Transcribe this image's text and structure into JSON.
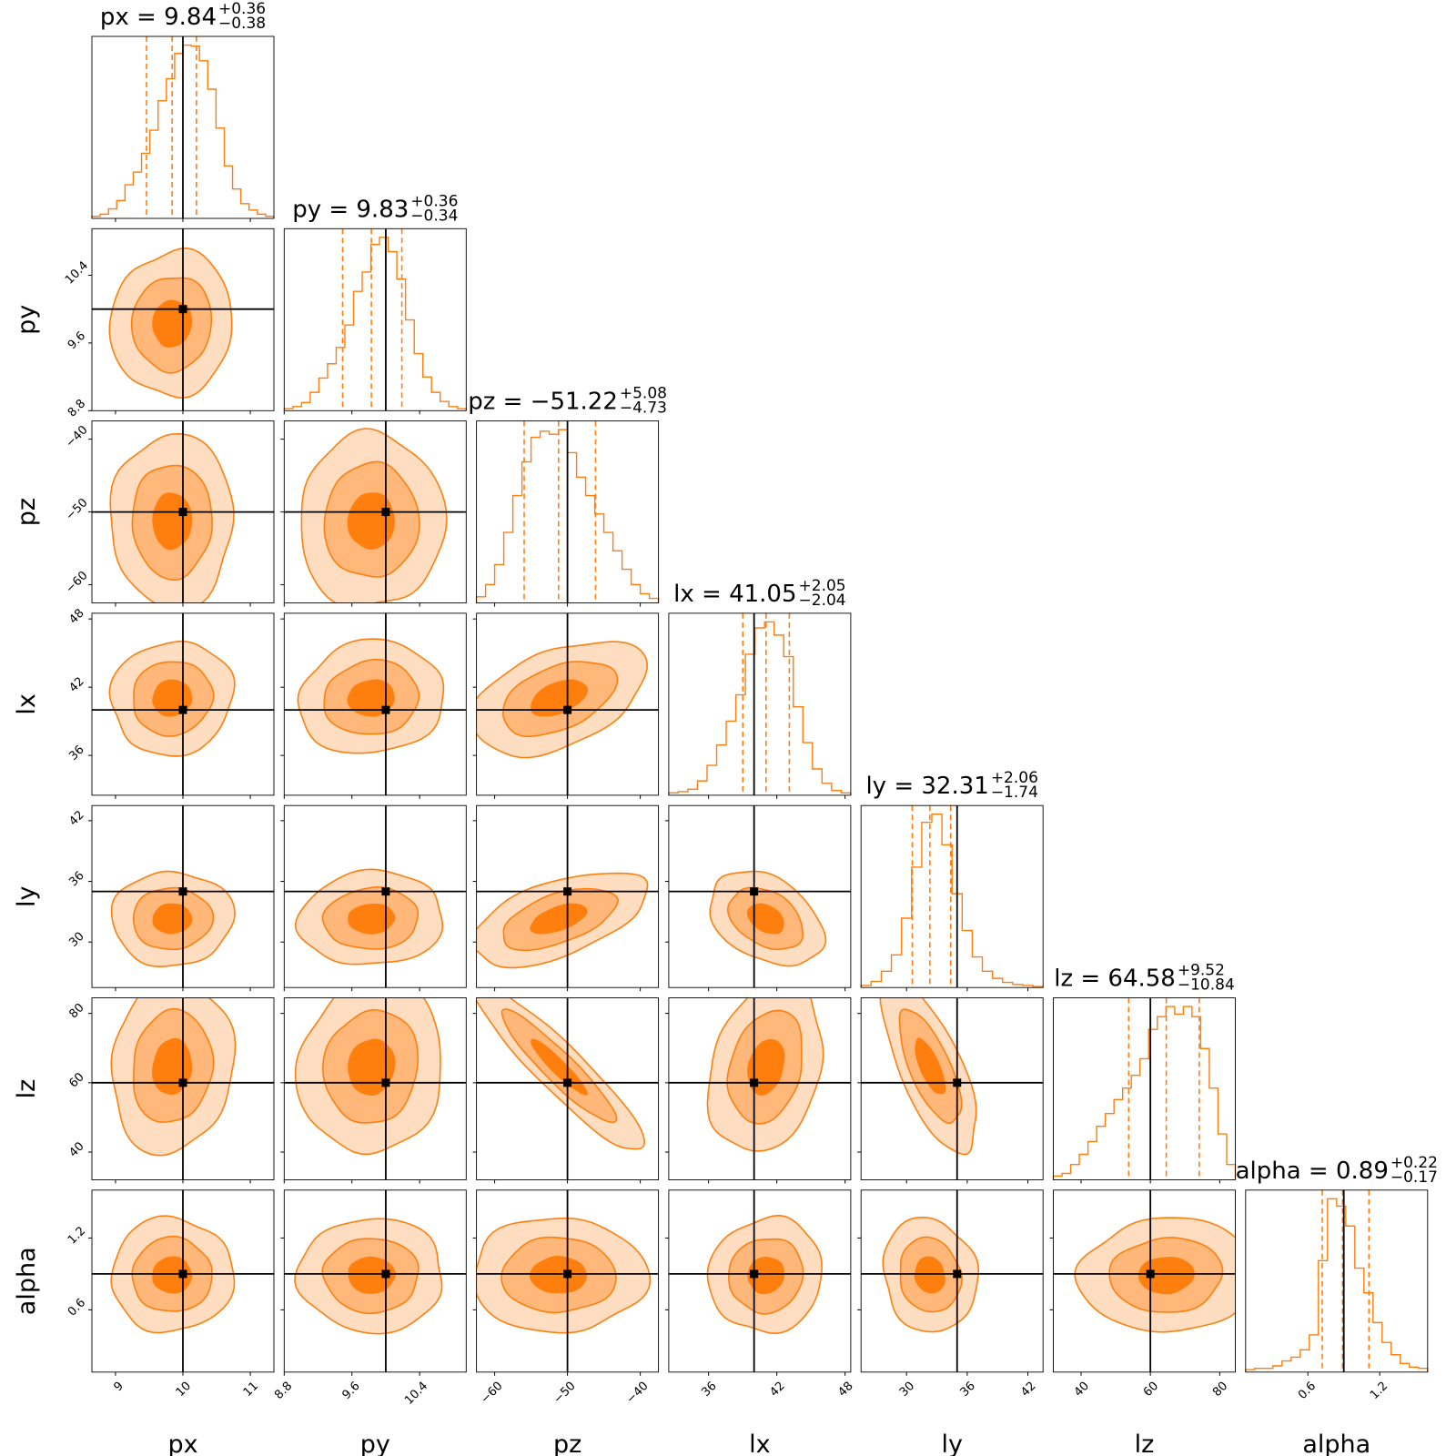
{
  "chart_data": {
    "type": "corner",
    "colors": {
      "accent": "#ff7f0e",
      "light": "#ffddc0",
      "mid": "#ffb87a",
      "dark": "#ff7f0e",
      "truth": "#000000"
    },
    "params": [
      {
        "name": "px",
        "median": "9.84",
        "plus": "+0.36",
        "minus": "−0.38",
        "prefix": "px = ",
        "range": [
          8.65,
          11.35
        ],
        "truth": 10.0,
        "quantiles": [
          9.46,
          9.84,
          10.2
        ],
        "ticks": [
          9,
          10,
          11
        ],
        "tick_labels": [
          "9",
          "10",
          "11"
        ],
        "hist": [
          2,
          4,
          9,
          17,
          32,
          44,
          62,
          84,
          112,
          133,
          157,
          165,
          164,
          150,
          123,
          86,
          50,
          28,
          14,
          8,
          4,
          2
        ]
      },
      {
        "name": "py",
        "median": "9.83",
        "plus": "+0.36",
        "minus": "−0.34",
        "prefix": "py = ",
        "range": [
          8.8,
          10.95
        ],
        "truth": 10.0,
        "quantiles": [
          9.49,
          9.83,
          10.19
        ],
        "ticks": [
          8.8,
          9.6,
          10.4
        ],
        "tick_labels": [
          "8.8",
          "9.6",
          "10.4"
        ],
        "hist": [
          2,
          4,
          8,
          18,
          32,
          46,
          62,
          84,
          117,
          136,
          163,
          170,
          156,
          129,
          89,
          56,
          33,
          18,
          9,
          4,
          2
        ]
      },
      {
        "name": "pz",
        "median": "−51.22",
        "plus": "+5.08",
        "minus": "−4.73",
        "prefix": "pz = ",
        "range": [
          -62.5,
          -37.5
        ],
        "truth": -50.0,
        "quantiles": [
          -55.95,
          -51.22,
          -46.14
        ],
        "ticks": [
          -60,
          -50,
          -40
        ],
        "tick_labels": [
          "−60",
          "−50",
          "−40"
        ],
        "hist": [
          4,
          12,
          25,
          46,
          70,
          92,
          108,
          112,
          110,
          113,
          98,
          82,
          70,
          58,
          46,
          34,
          22,
          12,
          6,
          3
        ]
      },
      {
        "name": "lx",
        "median": "41.05",
        "plus": "+2.05",
        "minus": "−2.04",
        "prefix": "lx = ",
        "range": [
          32.5,
          48.5
        ],
        "truth": 40.0,
        "quantiles": [
          39.01,
          41.05,
          43.1
        ],
        "ticks": [
          36,
          42,
          48
        ],
        "tick_labels": [
          "36",
          "42",
          "48"
        ],
        "hist": [
          2,
          3,
          5,
          12,
          25,
          42,
          62,
          84,
          118,
          140,
          145,
          134,
          116,
          74,
          44,
          22,
          10,
          4,
          2
        ]
      },
      {
        "name": "ly",
        "median": "32.31",
        "plus": "+2.06",
        "minus": "−1.74",
        "prefix": "ly = ",
        "range": [
          25.5,
          43.5
        ],
        "truth": 35.0,
        "quantiles": [
          30.57,
          32.31,
          34.37
        ],
        "ticks": [
          30,
          36,
          42
        ],
        "tick_labels": [
          "30",
          "36",
          "42"
        ],
        "hist": [
          2,
          6,
          16,
          32,
          68,
          118,
          162,
          170,
          140,
          92,
          56,
          30,
          16,
          9,
          5,
          3,
          2,
          1
        ]
      },
      {
        "name": "lz",
        "median": "64.58",
        "plus": "+9.52",
        "minus": "−10.84",
        "prefix": "lz = ",
        "range": [
          32.0,
          84.5
        ],
        "truth": 60.0,
        "quantiles": [
          53.74,
          64.58,
          74.1
        ],
        "ticks": [
          40,
          60,
          80
        ],
        "tick_labels": [
          "40",
          "60",
          "80"
        ],
        "hist": [
          3,
          5,
          12,
          20,
          30,
          42,
          52,
          63,
          72,
          82,
          95,
          118,
          128,
          136,
          130,
          136,
          128,
          103,
          72,
          36,
          12
        ]
      },
      {
        "name": "alpha",
        "median": "0.89",
        "plus": "+0.22",
        "minus": "−0.17",
        "prefix": "alpha = ",
        "range": [
          0.08,
          1.6
        ],
        "truth": 0.9,
        "quantiles": [
          0.72,
          0.89,
          1.11
        ],
        "ticks": [
          0.6,
          1.2
        ],
        "tick_labels": [
          "0.6",
          "1.2"
        ],
        "hist": [
          2,
          3,
          3,
          5,
          9,
          12,
          18,
          30,
          90,
          140,
          134,
          118,
          84,
          64,
          40,
          24,
          14,
          7,
          4,
          3
        ]
      }
    ],
    "correlations": [
      [
        0,
        0,
        0,
        0,
        0,
        0,
        0
      ],
      [
        0.05,
        0,
        0,
        0,
        0,
        0,
        0
      ],
      [
        0,
        0.02,
        0,
        0,
        0,
        0,
        0
      ],
      [
        0.05,
        0.08,
        0.45,
        0,
        0,
        0,
        0
      ],
      [
        0.02,
        0.05,
        0.55,
        -0.35,
        0,
        0,
        0
      ],
      [
        0.1,
        0.08,
        -0.93,
        0.25,
        -0.7,
        0,
        0
      ],
      [
        0,
        0,
        0,
        0.05,
        -0.1,
        0.05,
        0
      ]
    ],
    "hist_max_scale": 1.05
  }
}
